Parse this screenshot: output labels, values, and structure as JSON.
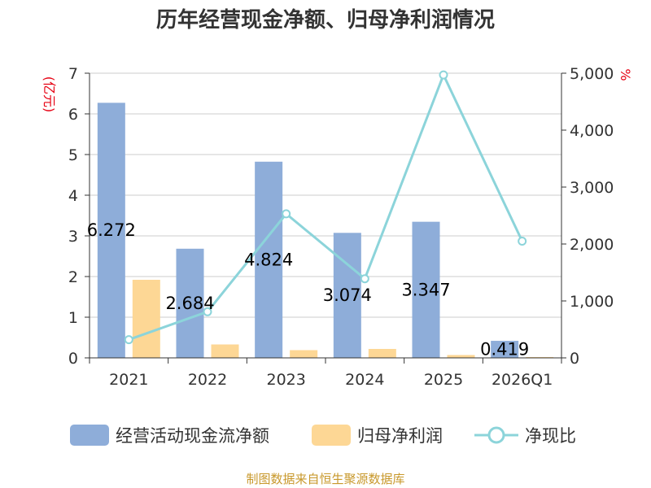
{
  "title": "历年经营现金净额、归母净利润情况",
  "source": "制图数据来自恒生聚源数据库",
  "colors": {
    "op_cash": "#8eadd9",
    "net_profit": "#fdd795",
    "ratio": "#8cd4da",
    "unit": "#e60012",
    "source": "#c8982b"
  },
  "chart_data": {
    "type": "bar",
    "categories": [
      "2021",
      "2022",
      "2023",
      "2024",
      "2025",
      "2026Q1"
    ],
    "series": [
      {
        "name": "经营活动现金流净额",
        "type": "bar",
        "axis": "left",
        "values": [
          6.272,
          2.684,
          4.824,
          3.074,
          3.347,
          0.419
        ],
        "labels": [
          "6.272",
          "2.684",
          "4.824",
          "3.074",
          "3.347",
          "0.419"
        ]
      },
      {
        "name": "归母净利润",
        "type": "bar",
        "axis": "left",
        "values": [
          1.92,
          0.33,
          0.19,
          0.22,
          0.07,
          0.02
        ]
      },
      {
        "name": "净现比",
        "type": "line",
        "axis": "right",
        "values": [
          320,
          810,
          2530,
          1390,
          4970,
          2050
        ]
      }
    ],
    "left_axis": {
      "unit": "(亿元)",
      "min": 0,
      "max": 7,
      "ticks": [
        "0",
        "1",
        "2",
        "3",
        "4",
        "5",
        "6",
        "7"
      ]
    },
    "right_axis": {
      "unit": "%",
      "min": 0,
      "max": 5000,
      "ticks": [
        "0",
        "1,000",
        "2,000",
        "3,000",
        "4,000",
        "5,000"
      ]
    },
    "grid": true,
    "legend_position": "bottom"
  }
}
